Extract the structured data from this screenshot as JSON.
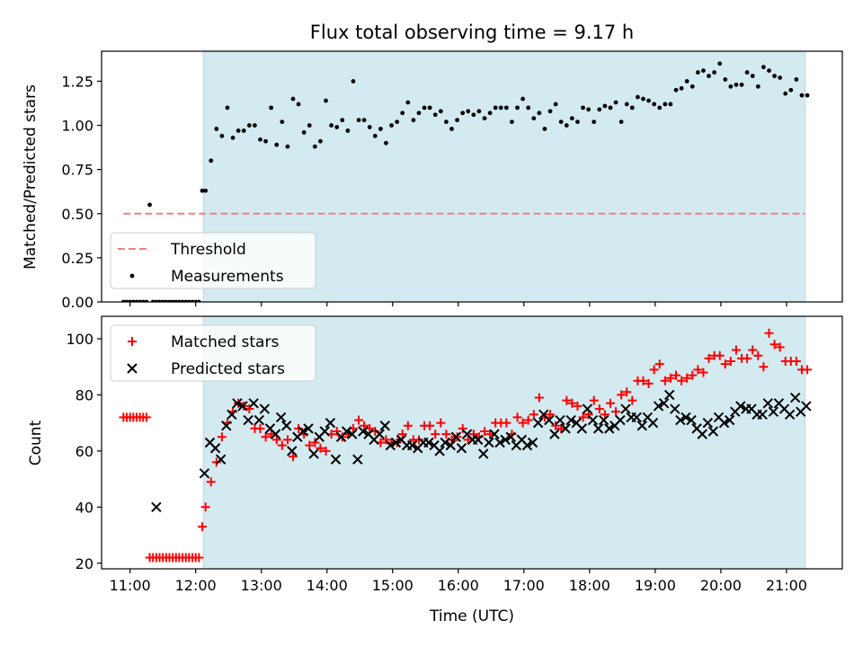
{
  "chart_data": [
    {
      "type": "scatter",
      "title": "Flux total observing time = 9.17 h",
      "xlabel": "",
      "ylabel": "Matched/Predicted stars",
      "ylim": [
        0,
        1.42
      ],
      "yticks": [
        "0.00",
        "0.25",
        "0.50",
        "0.75",
        "1.00",
        "1.25"
      ],
      "yticks_values": [
        0,
        0.25,
        0.5,
        0.75,
        1.0,
        1.25
      ],
      "xlim": [
        "10:34",
        "21:51"
      ],
      "xticks": [
        "11:00",
        "12:00",
        "13:00",
        "14:00",
        "15:00",
        "16:00",
        "17:00",
        "18:00",
        "19:00",
        "20:00",
        "21:00"
      ],
      "shaded_span": [
        "12:07",
        "21:17"
      ],
      "shade_color": "#d3eaf1",
      "legend_position": "lower-left",
      "series": [
        {
          "name": "Threshold",
          "style": "dashed-line",
          "color": "#f08080",
          "x": [
            "10:54",
            "21:17"
          ],
          "y": [
            0.5,
            0.5
          ]
        },
        {
          "name": "Measurements",
          "style": "dot",
          "color": "#000000",
          "x": [
            "10:54",
            "10:57",
            "11:00",
            "11:03",
            "11:06",
            "11:09",
            "11:12",
            "11:15",
            "11:18",
            "11:21",
            "11:24",
            "11:27",
            "11:30",
            "11:33",
            "11:36",
            "11:39",
            "11:42",
            "11:45",
            "11:48",
            "11:51",
            "11:54",
            "11:57",
            "12:00",
            "12:03",
            "12:06",
            "12:09",
            "12:14",
            "12:19",
            "12:24",
            "12:29",
            "12:34",
            "12:39",
            "12:44",
            "12:49",
            "12:54",
            "12:59",
            "13:04",
            "13:09",
            "13:14",
            "13:19",
            "13:24",
            "13:29",
            "13:34",
            "13:39",
            "13:44",
            "13:49",
            "13:54",
            "13:59",
            "14:04",
            "14:09",
            "14:14",
            "14:19",
            "14:24",
            "14:29",
            "14:34",
            "14:39",
            "14:44",
            "14:49",
            "14:54",
            "14:59",
            "15:04",
            "15:09",
            "15:14",
            "15:19",
            "15:24",
            "15:29",
            "15:34",
            "15:39",
            "15:44",
            "15:49",
            "15:54",
            "15:59",
            "16:04",
            "16:09",
            "16:14",
            "16:19",
            "16:24",
            "16:29",
            "16:34",
            "16:39",
            "16:44",
            "16:49",
            "16:54",
            "16:59",
            "17:04",
            "17:09",
            "17:14",
            "17:19",
            "17:24",
            "17:29",
            "17:34",
            "17:39",
            "17:44",
            "17:49",
            "17:54",
            "17:59",
            "18:04",
            "18:09",
            "18:14",
            "18:19",
            "18:24",
            "18:29",
            "18:34",
            "18:39",
            "18:44",
            "18:49",
            "18:54",
            "18:59",
            "19:04",
            "19:09",
            "19:14",
            "19:19",
            "19:24",
            "19:29",
            "19:34",
            "19:39",
            "19:44",
            "19:49",
            "19:54",
            "19:59",
            "20:04",
            "20:09",
            "20:14",
            "20:19",
            "20:24",
            "20:29",
            "20:34",
            "20:39",
            "20:44",
            "20:49",
            "20:54",
            "20:59",
            "21:04",
            "21:09",
            "21:14",
            "21:19"
          ],
          "y": [
            0,
            0,
            0,
            0,
            0,
            0,
            0,
            0,
            0.55,
            0,
            0,
            0,
            0,
            0,
            0,
            0,
            0,
            0,
            0,
            0,
            0,
            0,
            0,
            0,
            0.63,
            0.63,
            0.8,
            0.98,
            0.94,
            1.1,
            0.93,
            0.97,
            0.97,
            1.0,
            1.0,
            0.92,
            0.91,
            1.1,
            0.89,
            1.02,
            0.88,
            1.15,
            1.12,
            0.96,
            1.0,
            0.88,
            0.91,
            1.14,
            1.0,
            0.99,
            1.03,
            0.97,
            1.25,
            1.03,
            1.03,
            0.99,
            0.94,
            0.98,
            0.9,
            1.0,
            1.02,
            1.07,
            1.13,
            1.03,
            1.07,
            1.1,
            1.1,
            1.06,
            1.08,
            1.02,
            0.98,
            1.03,
            1.07,
            1.08,
            1.06,
            1.08,
            1.04,
            1.07,
            1.1,
            1.1,
            1.1,
            1.02,
            1.1,
            1.15,
            1.1,
            1.04,
            1.07,
            0.98,
            1.08,
            1.12,
            1.02,
            1.0,
            1.04,
            1.02,
            1.1,
            1.09,
            1.02,
            1.09,
            1.11,
            1.1,
            1.13,
            1.02,
            1.12,
            1.1,
            1.16,
            1.15,
            1.14,
            1.12,
            1.1,
            1.12,
            1.12,
            1.2,
            1.21,
            1.25,
            1.22,
            1.3,
            1.31,
            1.28,
            1.3,
            1.35,
            1.26,
            1.22,
            1.23,
            1.23,
            1.3,
            1.28,
            1.22,
            1.33,
            1.31,
            1.28,
            1.27,
            1.18,
            1.2,
            1.26,
            1.17,
            1.17
          ]
        }
      ]
    },
    {
      "type": "scatter",
      "title": "",
      "xlabel": "Time (UTC)",
      "ylabel": "Count",
      "ylim": [
        18,
        108
      ],
      "yticks": [
        "20",
        "40",
        "60",
        "80",
        "100"
      ],
      "yticks_values": [
        20,
        40,
        60,
        80,
        100
      ],
      "xlim": [
        "10:34",
        "21:51"
      ],
      "xticks": [
        "11:00",
        "12:00",
        "13:00",
        "14:00",
        "15:00",
        "16:00",
        "17:00",
        "18:00",
        "19:00",
        "20:00",
        "21:00"
      ],
      "shaded_span": [
        "12:07",
        "21:17"
      ],
      "shade_color": "#d3eaf1",
      "legend_position": "upper-left",
      "series": [
        {
          "name": "Matched stars",
          "marker": "plus",
          "color": "#ff0000",
          "x": [
            "10:54",
            "10:57",
            "11:00",
            "11:03",
            "11:06",
            "11:09",
            "11:12",
            "11:15",
            "11:18",
            "11:21",
            "11:24",
            "11:27",
            "11:30",
            "11:33",
            "11:36",
            "11:39",
            "11:42",
            "11:45",
            "11:48",
            "11:51",
            "11:54",
            "11:57",
            "12:00",
            "12:03",
            "12:06",
            "12:09",
            "12:14",
            "12:19",
            "12:24",
            "12:29",
            "12:34",
            "12:39",
            "12:44",
            "12:49",
            "12:54",
            "12:59",
            "13:04",
            "13:09",
            "13:14",
            "13:19",
            "13:24",
            "13:29",
            "13:34",
            "13:39",
            "13:44",
            "13:49",
            "13:54",
            "13:59",
            "14:04",
            "14:09",
            "14:14",
            "14:19",
            "14:24",
            "14:29",
            "14:34",
            "14:39",
            "14:44",
            "14:49",
            "14:54",
            "14:59",
            "15:04",
            "15:09",
            "15:14",
            "15:19",
            "15:24",
            "15:29",
            "15:34",
            "15:39",
            "15:44",
            "15:49",
            "15:54",
            "15:59",
            "16:04",
            "16:09",
            "16:14",
            "16:19",
            "16:24",
            "16:29",
            "16:34",
            "16:39",
            "16:44",
            "16:49",
            "16:54",
            "16:59",
            "17:04",
            "17:09",
            "17:14",
            "17:19",
            "17:24",
            "17:29",
            "17:34",
            "17:39",
            "17:44",
            "17:49",
            "17:54",
            "17:59",
            "18:04",
            "18:09",
            "18:14",
            "18:19",
            "18:24",
            "18:29",
            "18:34",
            "18:39",
            "18:44",
            "18:49",
            "18:54",
            "18:59",
            "19:04",
            "19:09",
            "19:14",
            "19:19",
            "19:24",
            "19:29",
            "19:34",
            "19:39",
            "19:44",
            "19:49",
            "19:54",
            "19:59",
            "20:04",
            "20:09",
            "20:14",
            "20:19",
            "20:24",
            "20:29",
            "20:34",
            "20:39",
            "20:44",
            "20:49",
            "20:54",
            "20:59",
            "21:04",
            "21:09",
            "21:14",
            "21:19"
          ],
          "y": [
            72,
            72,
            72,
            72,
            72,
            72,
            72,
            72,
            22,
            22,
            22,
            22,
            22,
            22,
            22,
            22,
            22,
            22,
            22,
            22,
            22,
            22,
            22,
            22,
            33,
            40,
            49,
            56,
            65,
            70,
            74,
            77,
            76,
            75,
            68,
            68,
            65,
            66,
            64,
            62,
            64,
            58,
            68,
            66,
            62,
            63,
            61,
            60,
            66,
            67,
            65,
            66,
            68,
            71,
            69,
            68,
            67,
            63,
            64,
            63,
            63,
            66,
            69,
            64,
            64,
            69,
            69,
            66,
            70,
            66,
            64,
            65,
            68,
            64,
            66,
            65,
            67,
            66,
            70,
            70,
            70,
            66,
            72,
            70,
            71,
            73,
            79,
            72,
            73,
            69,
            68,
            78,
            77,
            76,
            72,
            73,
            78,
            75,
            73,
            77,
            74,
            80,
            81,
            78,
            85,
            85,
            84,
            89,
            91,
            85,
            86,
            87,
            85,
            86,
            87,
            89,
            88,
            93,
            94,
            94,
            91,
            92,
            96,
            93,
            93,
            96,
            94,
            90,
            102,
            98,
            97,
            92,
            92,
            92,
            89,
            89
          ]
        },
        {
          "name": "Predicted stars",
          "marker": "x",
          "color": "#000000",
          "x": [
            "11:24",
            "12:08",
            "12:13",
            "12:18",
            "12:23",
            "12:28",
            "12:33",
            "12:38",
            "12:43",
            "12:48",
            "12:53",
            "12:58",
            "13:03",
            "13:08",
            "13:13",
            "13:18",
            "13:23",
            "13:28",
            "13:33",
            "13:38",
            "13:43",
            "13:48",
            "13:53",
            "13:58",
            "14:03",
            "14:08",
            "14:13",
            "14:18",
            "14:23",
            "14:28",
            "14:33",
            "14:38",
            "14:43",
            "14:48",
            "14:53",
            "14:58",
            "15:03",
            "15:08",
            "15:13",
            "15:18",
            "15:23",
            "15:28",
            "15:33",
            "15:38",
            "15:43",
            "15:48",
            "15:53",
            "15:58",
            "16:03",
            "16:08",
            "16:13",
            "16:18",
            "16:23",
            "16:28",
            "16:33",
            "16:38",
            "16:43",
            "16:48",
            "16:53",
            "16:58",
            "17:03",
            "17:08",
            "17:13",
            "17:18",
            "17:23",
            "17:28",
            "17:33",
            "17:38",
            "17:43",
            "17:48",
            "17:53",
            "17:58",
            "18:03",
            "18:08",
            "18:13",
            "18:18",
            "18:23",
            "18:28",
            "18:33",
            "18:38",
            "18:43",
            "18:48",
            "18:53",
            "18:58",
            "19:03",
            "19:08",
            "19:13",
            "19:18",
            "19:23",
            "19:28",
            "19:33",
            "19:38",
            "19:43",
            "19:48",
            "19:53",
            "19:58",
            "20:03",
            "20:08",
            "20:13",
            "20:18",
            "20:23",
            "20:28",
            "20:33",
            "20:38",
            "20:43",
            "20:48",
            "20:53",
            "20:58",
            "21:03",
            "21:08",
            "21:13",
            "21:18"
          ],
          "y": [
            40,
            52,
            63,
            61,
            57,
            69,
            73,
            77,
            76,
            71,
            77,
            71,
            75,
            68,
            66,
            72,
            69,
            60,
            65,
            67,
            68,
            59,
            65,
            67,
            70,
            57,
            65,
            67,
            66,
            57,
            67,
            66,
            64,
            66,
            69,
            62,
            63,
            64,
            62,
            62,
            61,
            63,
            63,
            62,
            60,
            63,
            62,
            65,
            61,
            66,
            64,
            64,
            59,
            63,
            66,
            63,
            64,
            65,
            62,
            64,
            62,
            63,
            70,
            73,
            71,
            66,
            71,
            68,
            71,
            70,
            68,
            75,
            71,
            68,
            71,
            68,
            69,
            71,
            75,
            72,
            72,
            69,
            72,
            70,
            76,
            77,
            80,
            75,
            71,
            72,
            71,
            68,
            66,
            70,
            67,
            72,
            70,
            71,
            74,
            76,
            75,
            75,
            73,
            73,
            77,
            74,
            77,
            75,
            73,
            79,
            74,
            76
          ]
        }
      ]
    }
  ]
}
